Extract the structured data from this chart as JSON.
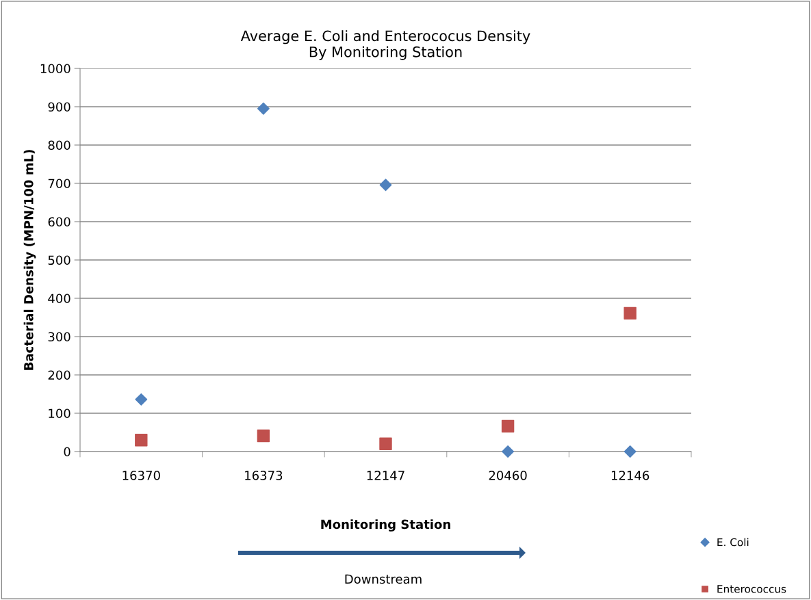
{
  "chart_data": {
    "type": "scatter",
    "title": "Average E. Coli and Enterococus Density\nBy Monitoring Station",
    "xlabel": "Monitoring Station",
    "ylabel": "Bacterial Density (MPN/100 mL)",
    "categories": [
      "16370",
      "16373",
      "12147",
      "20460",
      "12146"
    ],
    "series": [
      {
        "name": "E. Coli",
        "color": "#4f81bd",
        "marker": "diamond",
        "values": [
          136,
          895,
          696,
          0,
          0
        ]
      },
      {
        "name": "Enterococcus",
        "color": "#c0504d",
        "marker": "square",
        "values": [
          30,
          41,
          20,
          66,
          361
        ]
      }
    ],
    "ylim": [
      0,
      1000
    ],
    "yticks": [
      0,
      100,
      200,
      300,
      400,
      500,
      600,
      700,
      800,
      900,
      1000
    ],
    "grid": "y",
    "legend": "right",
    "annotations": [
      "Downstream"
    ]
  }
}
